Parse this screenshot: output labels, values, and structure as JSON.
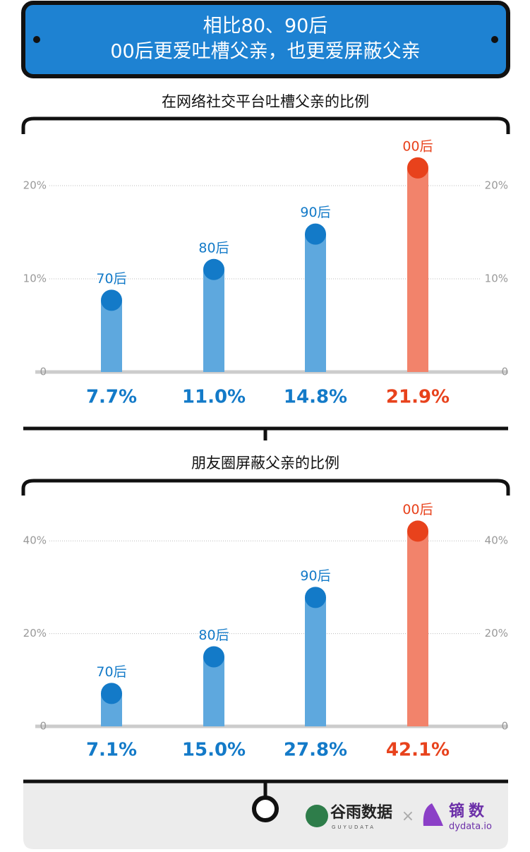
{
  "header": {
    "title_line1": "相比80、90后",
    "title_line2": "00后更爱吐槽父亲，也更爱屏蔽父亲"
  },
  "chart_data": [
    {
      "type": "bar",
      "title": "在网络社交平台吐槽父亲的比例",
      "categories": [
        "70后",
        "80后",
        "90后",
        "00后"
      ],
      "values": [
        7.7,
        11.0,
        14.8,
        21.9
      ],
      "value_labels": [
        "7.7%",
        "11.0%",
        "14.8%",
        "21.9%"
      ],
      "bar_colors": [
        "#5ea8de",
        "#5ea8de",
        "#5ea8de",
        "#f2836b"
      ],
      "dot_colors": [
        "#137ac8",
        "#137ac8",
        "#137ac8",
        "#e8421c"
      ],
      "ylim": [
        0,
        24
      ],
      "yticks": [
        0,
        {
          "value": 10,
          "label": "10%"
        },
        {
          "value": 20,
          "label": "20%"
        }
      ],
      "grid": true
    },
    {
      "type": "bar",
      "title": "朋友圈屏蔽父亲的比例",
      "categories": [
        "70后",
        "80后",
        "90后",
        "00后"
      ],
      "values": [
        7.1,
        15.0,
        27.8,
        42.1
      ],
      "value_labels": [
        "7.1%",
        "15.0%",
        "27.8%",
        "42.1%"
      ],
      "bar_colors": [
        "#5ea8de",
        "#5ea8de",
        "#5ea8de",
        "#f2836b"
      ],
      "dot_colors": [
        "#137ac8",
        "#137ac8",
        "#137ac8",
        "#e8421c"
      ],
      "ylim": [
        0,
        46
      ],
      "yticks": [
        0,
        {
          "value": 20,
          "label": "20%"
        },
        {
          "value": 40,
          "label": "40%"
        }
      ],
      "grid": true
    }
  ],
  "footer": {
    "logo1": "谷雨数据",
    "logo1_sub": "GUYUDATA",
    "separator": "×",
    "logo2": "镝数",
    "logo2_sub": "dydata.io"
  }
}
